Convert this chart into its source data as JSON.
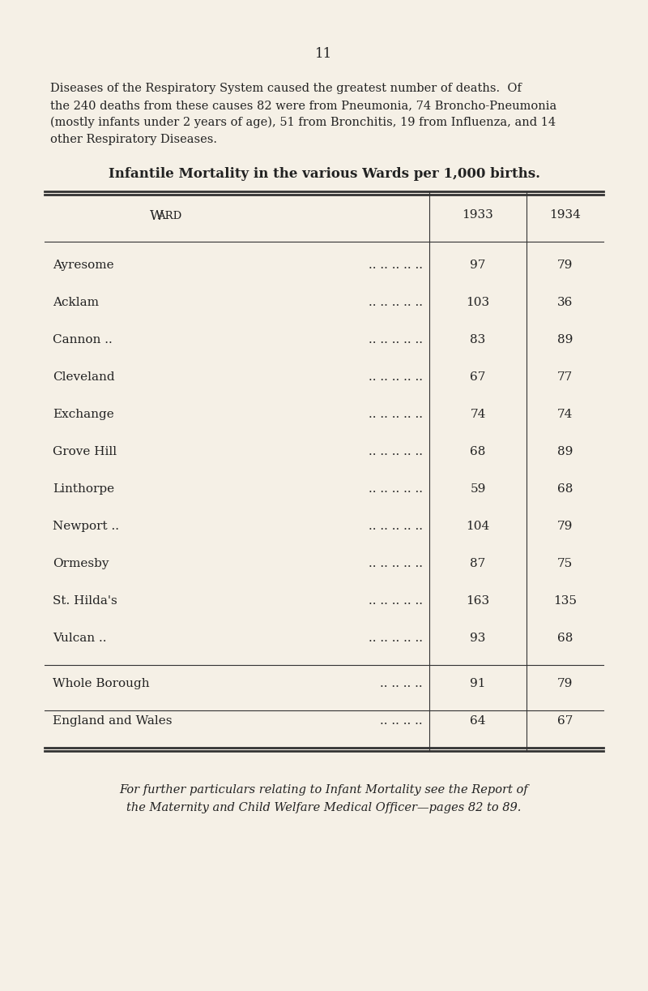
{
  "background_color": "#f5f0e6",
  "page_number": "11",
  "intro_line1": "Diseases of the Respiratory System caused the greatest number of deaths.  Of",
  "intro_line2": "the 240 deaths from these causes 82 were from Pneumonia, 74 Broncho-Pneumonia",
  "intro_line3": "(mostly infants under 2 years of age), 51 from Bronchitis, 19 from Influenza, and 14",
  "intro_line4": "other Respiratory Diseases.",
  "table_title": "Infantile Mortality in the various Wards per 1,000 births.",
  "col_header_ward": "Ward",
  "col_header_1933": "1933",
  "col_header_1934": "1934",
  "rows": [
    [
      "Ayresome",
      ".. .. .. .. ..",
      "97",
      "79"
    ],
    [
      "Acklam",
      ".. .. .. .. ..",
      "103",
      "36"
    ],
    [
      "Cannon ..",
      ".. .. .. .. ..",
      "83",
      "89"
    ],
    [
      "Cleveland",
      ".. .. .. .. ..",
      "67",
      "77"
    ],
    [
      "Exchange",
      ".. .. .. .. ..",
      "74",
      "74"
    ],
    [
      "Grove Hill",
      ".. .. .. .. ..",
      "68",
      "89"
    ],
    [
      "Linthorpe",
      ".. .. .. .. ..",
      "59",
      "68"
    ],
    [
      "Newport ..",
      ".. .. .. .. ..",
      "104",
      "79"
    ],
    [
      "Ormesby",
      ".. .. .. .. ..",
      "87",
      "75"
    ],
    [
      "St. Hilda's",
      ".. .. .. .. ..",
      "163",
      "135"
    ],
    [
      "Vulcan ..",
      ".. .. .. .. ..",
      "93",
      "68"
    ]
  ],
  "summary_rows": [
    [
      "Whole Borough",
      ".. .. .. ..",
      "91",
      "79"
    ],
    [
      "England and Wales",
      ".. .. .. ..",
      "64",
      "67"
    ]
  ],
  "footer_line1": "For further particulars relating to Infant Mortality see the Report of",
  "footer_line2": "the Maternity and Child Welfare Medical Officer—pages 82 to 89.",
  "text_color": "#222222",
  "line_color": "#333333"
}
